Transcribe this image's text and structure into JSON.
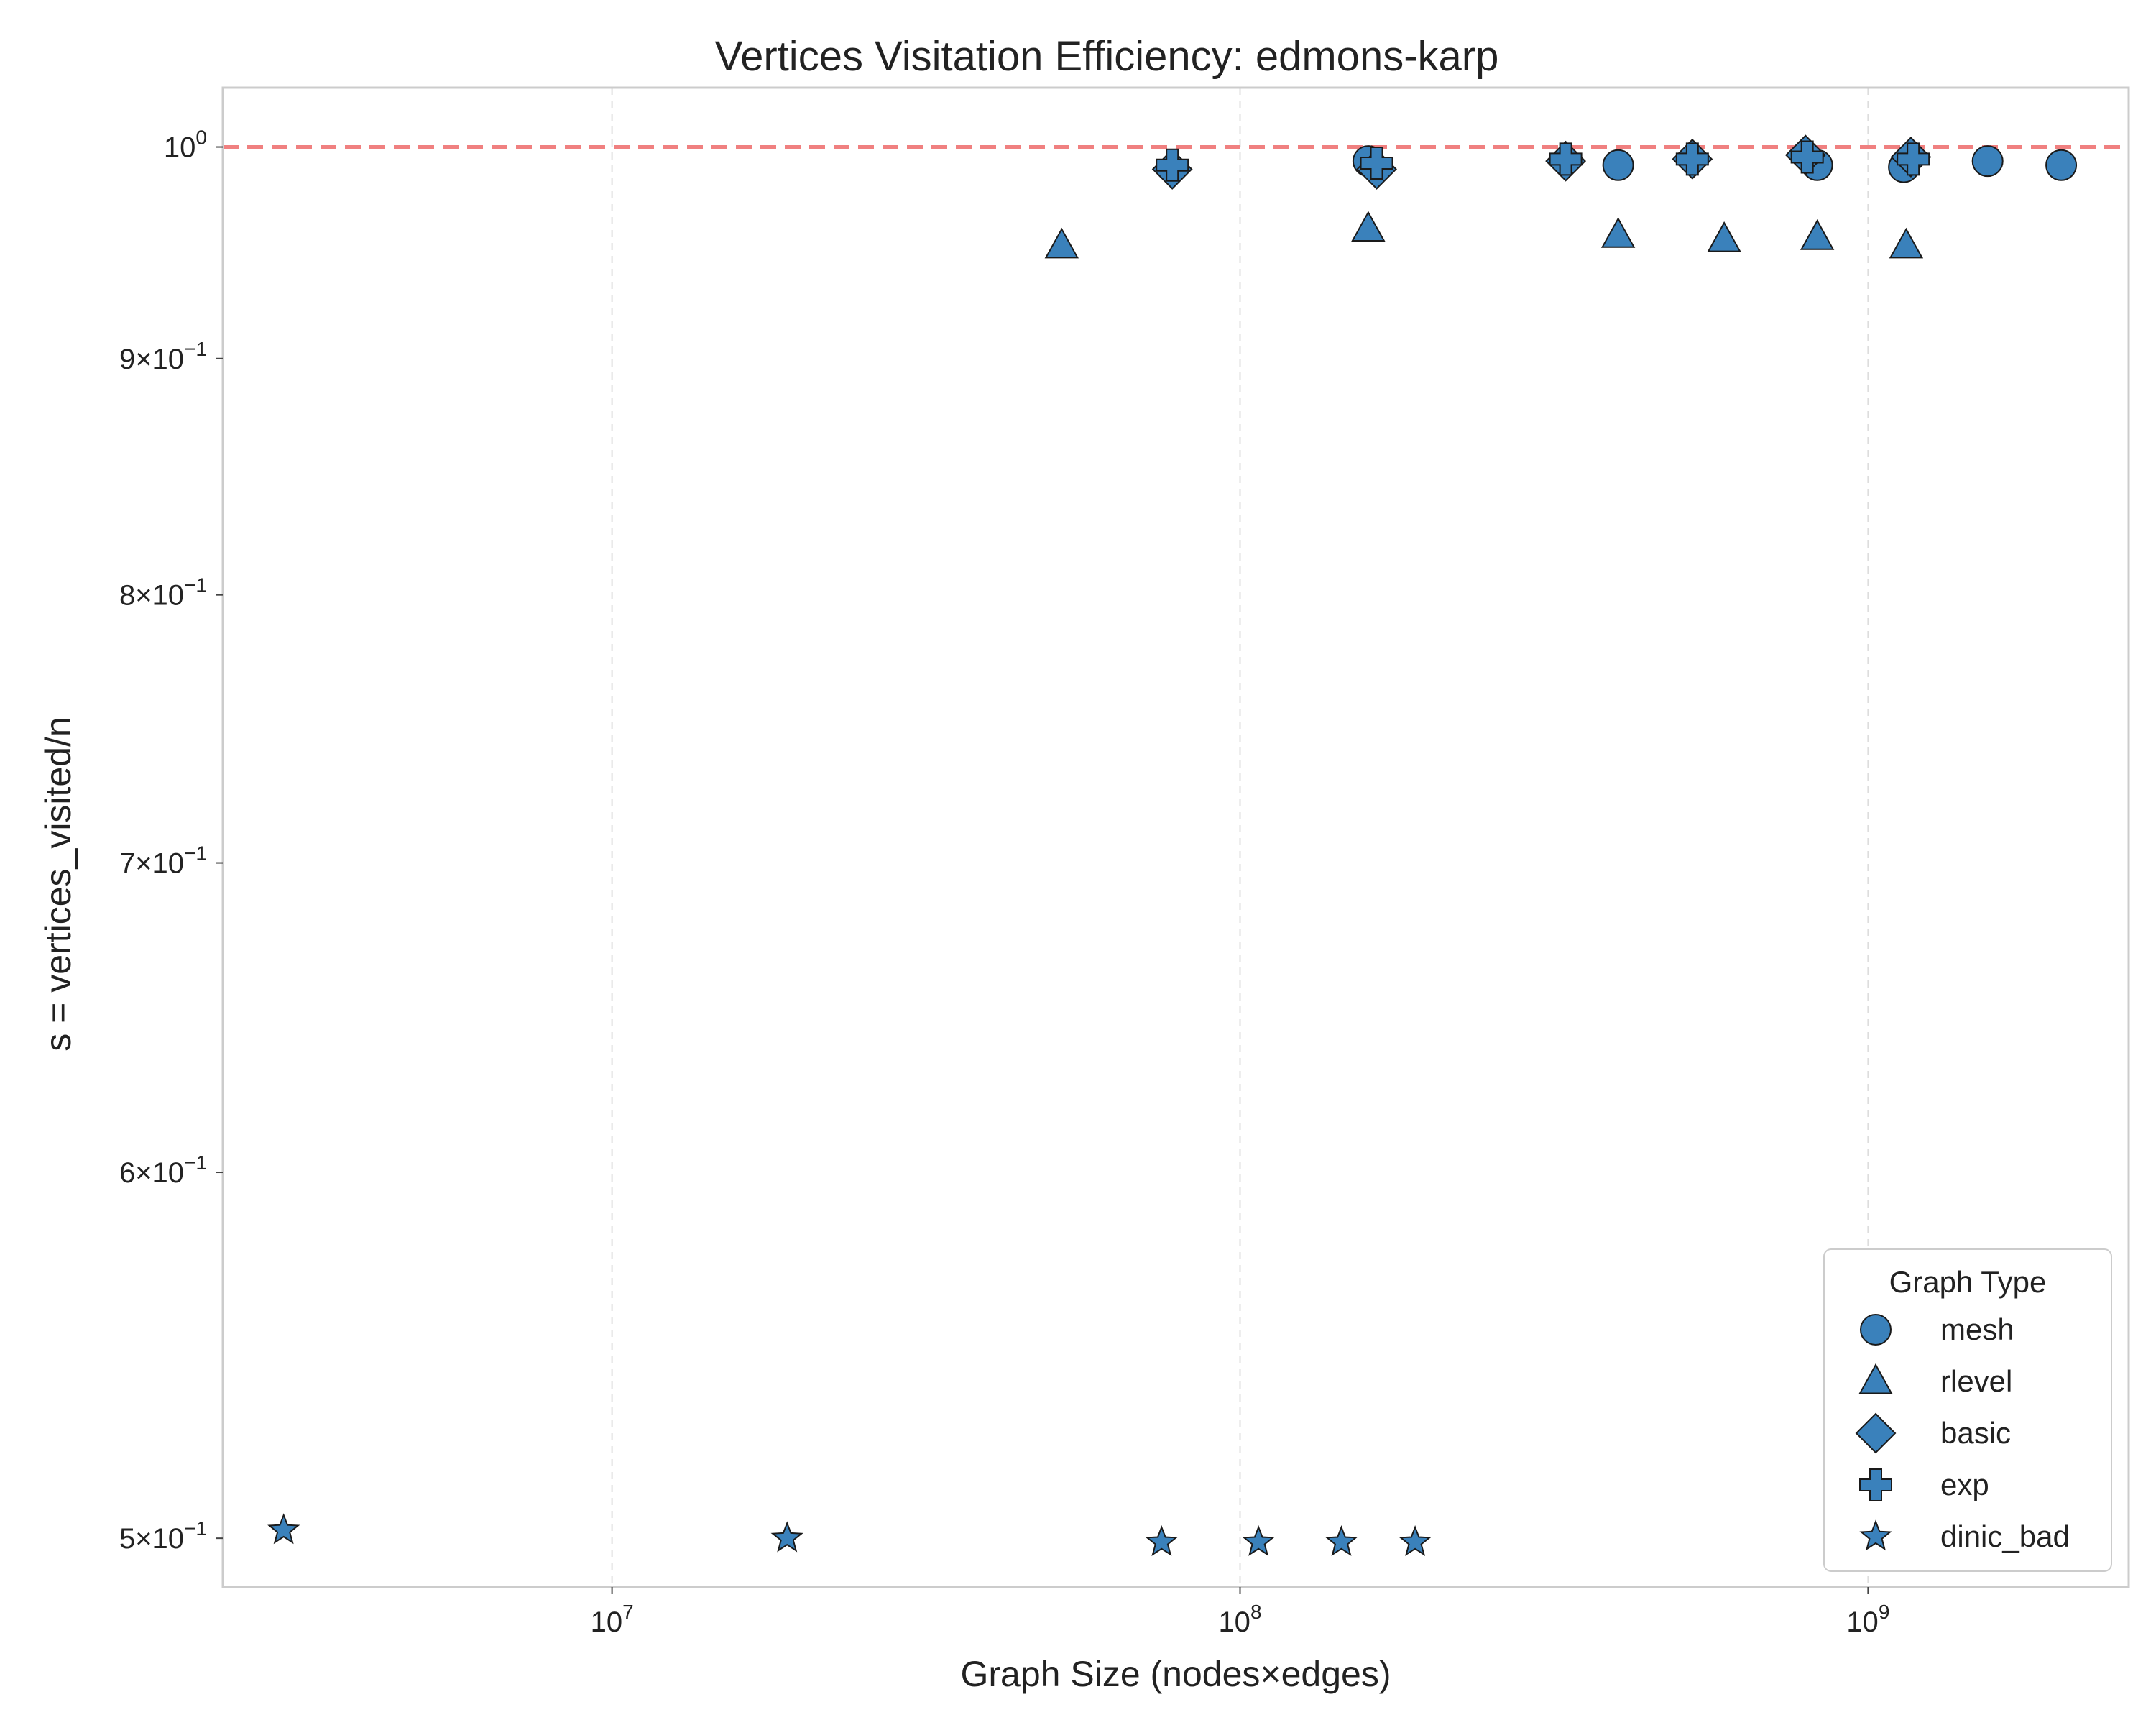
{
  "chart_data": {
    "type": "scatter",
    "title": "Vertices Visitation Efficiency: edmons-karp",
    "xlabel": "Graph Size (nodes×edges)",
    "ylabel": "s = vertices_visited/n",
    "xscale": "log",
    "yscale": "log",
    "xlim": [
      2400000,
      2600000000
    ],
    "ylim": [
      0.488,
      1.03
    ],
    "x_ticks": [
      {
        "value": 10000000,
        "base": "10",
        "exp": "7"
      },
      {
        "value": 100000000,
        "base": "10",
        "exp": "8"
      },
      {
        "value": 1000000000,
        "base": "10",
        "exp": "9"
      }
    ],
    "y_ticks": [
      {
        "value": 1.0,
        "base": "10",
        "exp": "0"
      },
      {
        "value": 0.9,
        "base": "9×10",
        "exp": "−1"
      },
      {
        "value": 0.8,
        "base": "8×10",
        "exp": "−1"
      },
      {
        "value": 0.7,
        "base": "7×10",
        "exp": "−1"
      },
      {
        "value": 0.6,
        "base": "6×10",
        "exp": "−1"
      },
      {
        "value": 0.5,
        "base": "5×10",
        "exp": "−1"
      }
    ],
    "reference_line": {
      "y": 1.0,
      "style": "dashed",
      "color": "#f08080"
    },
    "grid": {
      "x": true,
      "y": false
    },
    "marker_color": "#3a81bb",
    "legend": {
      "title": "Graph Type",
      "placement": "lower-right"
    },
    "series": [
      {
        "name": "mesh",
        "marker": "circle",
        "x": [
          160000000,
          400000000,
          830000000,
          1140000000,
          1550000000,
          2030000000
        ],
        "y": [
          0.993,
          0.991,
          0.991,
          0.99,
          0.993,
          0.991
        ]
      },
      {
        "name": "rlevel",
        "marker": "triangle",
        "x": [
          52000000,
          160000000,
          400000000,
          590000000,
          830000000,
          1150000000
        ],
        "y": [
          0.952,
          0.96,
          0.957,
          0.955,
          0.956,
          0.952
        ]
      },
      {
        "name": "basic",
        "marker": "diamond",
        "x": [
          78000000,
          165000000,
          330000000,
          525000000,
          795000000,
          1170000000
        ],
        "y": [
          0.989,
          0.989,
          0.993,
          0.994,
          0.996,
          0.995
        ]
      },
      {
        "name": "exp",
        "marker": "plus",
        "x": [
          78000000,
          165000000,
          330000000,
          525000000,
          800000000,
          1180000000
        ],
        "y": [
          0.991,
          0.992,
          0.994,
          0.994,
          0.995,
          0.994
        ]
      },
      {
        "name": "dinic_bad",
        "marker": "star",
        "x": [
          3000000,
          19000000,
          75000000,
          107000000,
          145000000,
          190000000
        ],
        "y": [
          0.502,
          0.5,
          0.499,
          0.499,
          0.499,
          0.499
        ]
      }
    ]
  }
}
